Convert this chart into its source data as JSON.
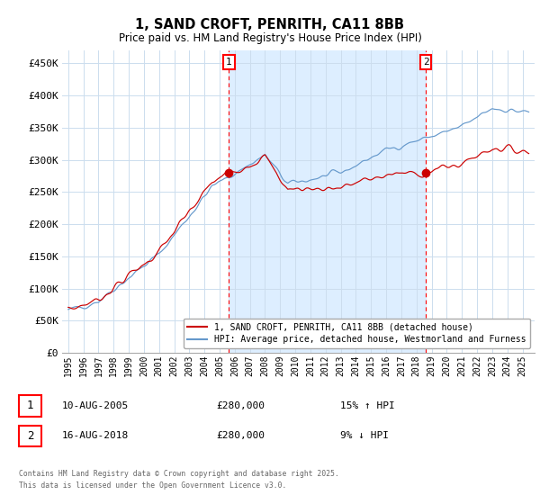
{
  "title": "1, SAND CROFT, PENRITH, CA11 8BB",
  "subtitle": "Price paid vs. HM Land Registry's House Price Index (HPI)",
  "ylabel_ticks": [
    "£0",
    "£50K",
    "£100K",
    "£150K",
    "£200K",
    "£250K",
    "£300K",
    "£350K",
    "£400K",
    "£450K"
  ],
  "ytick_vals": [
    0,
    50000,
    100000,
    150000,
    200000,
    250000,
    300000,
    350000,
    400000,
    450000
  ],
  "ylim": [
    0,
    470000
  ],
  "sale1_year": 2005.617,
  "sale1_price": 280000,
  "sale2_year": 2018.623,
  "sale2_price": 280000,
  "legend1": "1, SAND CROFT, PENRITH, CA11 8BB (detached house)",
  "legend2": "HPI: Average price, detached house, Westmorland and Furness",
  "ann1_date": "10-AUG-2005",
  "ann1_price": "£280,000",
  "ann1_hpi": "15% ↑ HPI",
  "ann2_date": "16-AUG-2018",
  "ann2_price": "£280,000",
  "ann2_hpi": "9% ↓ HPI",
  "footer": "Contains HM Land Registry data © Crown copyright and database right 2025.\nThis data is licensed under the Open Government Licence v3.0.",
  "line_color_red": "#cc0000",
  "line_color_blue": "#6699cc",
  "fill_color": "#ddeeff",
  "grid_color": "#ccddee",
  "background_color": "#ffffff"
}
